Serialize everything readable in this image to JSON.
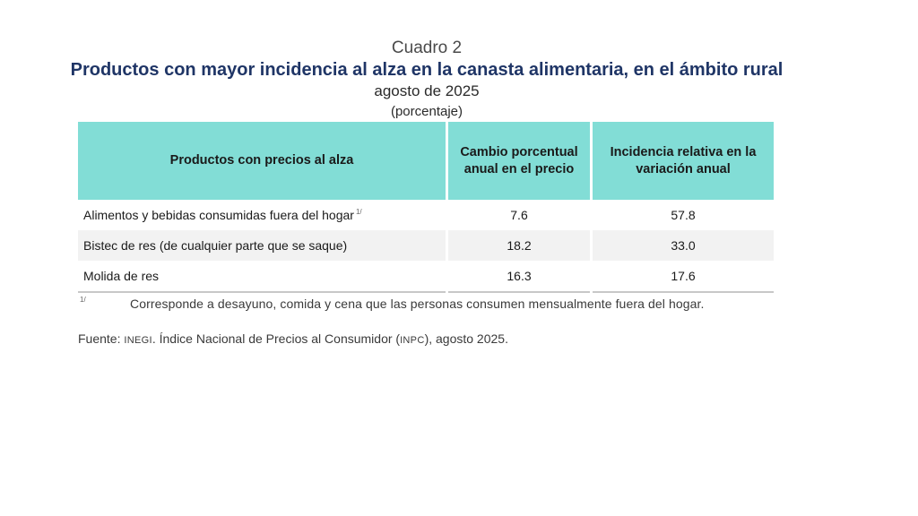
{
  "header": {
    "label": "Cuadro 2",
    "title": "Productos con mayor incidencia al alza en la canasta alimentaria, en el ámbito rural",
    "subtitle": "agosto de 2025",
    "unit": "(porcentaje)"
  },
  "table": {
    "headers": {
      "product": "Productos con precios al alza",
      "change": "Cambio porcentual anual en el precio",
      "incidence": "Incidencia relativa en la variación anual"
    },
    "rows": [
      {
        "product": "Alimentos y bebidas consumidas fuera del hogar",
        "note": "1/",
        "change": "7.6",
        "incidence": "57.8"
      },
      {
        "product": "Bistec de res (de cualquier parte que se saque)",
        "note": "",
        "change": "18.2",
        "incidence": "33.0"
      },
      {
        "product": "Molida de res",
        "note": "",
        "change": "16.3",
        "incidence": "17.6"
      }
    ]
  },
  "footnote": {
    "mark": "1/",
    "text": "Corresponde a desayuno, comida y cena que las personas consumen mensualmente fuera del hogar."
  },
  "source": {
    "label": "Fuente:",
    "org": "INEGI",
    "middle": ". Índice Nacional de Precios al Consumidor (",
    "abbr": "INPC",
    "end": "), agosto 2025."
  },
  "colors": {
    "header_fill": "#82ddd6",
    "title": "#1f3566",
    "row_shade": "#f2f2f2"
  }
}
